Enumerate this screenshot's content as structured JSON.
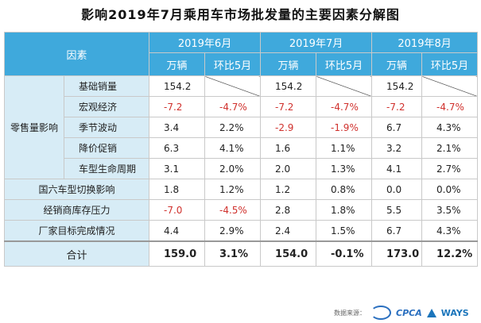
{
  "title": "影响2019年7月乘用车市场批发量的主要因素分解图",
  "header": {
    "factor": "因素",
    "months": [
      "2019年6月",
      "2019年7月",
      "2019年8月"
    ],
    "col_units": "万辆",
    "col_mom": "环比5月"
  },
  "group_label": "零售量影响",
  "rows": [
    {
      "name": "基础销量",
      "v": [
        "154.2",
        "",
        "154.2",
        "",
        "154.2",
        ""
      ]
    },
    {
      "name": "宏观经济",
      "v": [
        "-7.2",
        "-4.7%",
        "-7.2",
        "-4.7%",
        "-7.2",
        "-4.7%"
      ]
    },
    {
      "name": "季节波动",
      "v": [
        "3.4",
        "2.2%",
        "-2.9",
        "-1.9%",
        "6.7",
        "4.3%"
      ]
    },
    {
      "name": "降价促销",
      "v": [
        "6.3",
        "4.1%",
        "1.6",
        "1.1%",
        "3.2",
        "2.1%"
      ]
    },
    {
      "name": "车型生命周期",
      "v": [
        "3.1",
        "2.0%",
        "2.0",
        "1.3%",
        "4.1",
        "2.7%"
      ]
    }
  ],
  "other_rows": [
    {
      "name": "国六车型切换影响",
      "v": [
        "1.8",
        "1.2%",
        "1.2",
        "0.8%",
        "0.0",
        "0.0%"
      ]
    },
    {
      "name": "经销商库存压力",
      "v": [
        "-7.0",
        "-4.5%",
        "2.8",
        "1.8%",
        "5.5",
        "3.5%"
      ]
    },
    {
      "name": "厂家目标完成情况",
      "v": [
        "4.4",
        "2.9%",
        "2.4",
        "1.5%",
        "6.7",
        "4.3%"
      ]
    }
  ],
  "total": {
    "name": "合计",
    "v": [
      "159.0",
      "3.1%",
      "154.0",
      "-0.1%",
      "173.0",
      "12.2%"
    ]
  },
  "footer": {
    "source": "数据来源：",
    "logo1": "CPCA",
    "logo2": "WAYS"
  },
  "colors": {
    "header": "#3fa9dc",
    "label_bg": "#d7ecf6",
    "negative": "#d0312d"
  }
}
